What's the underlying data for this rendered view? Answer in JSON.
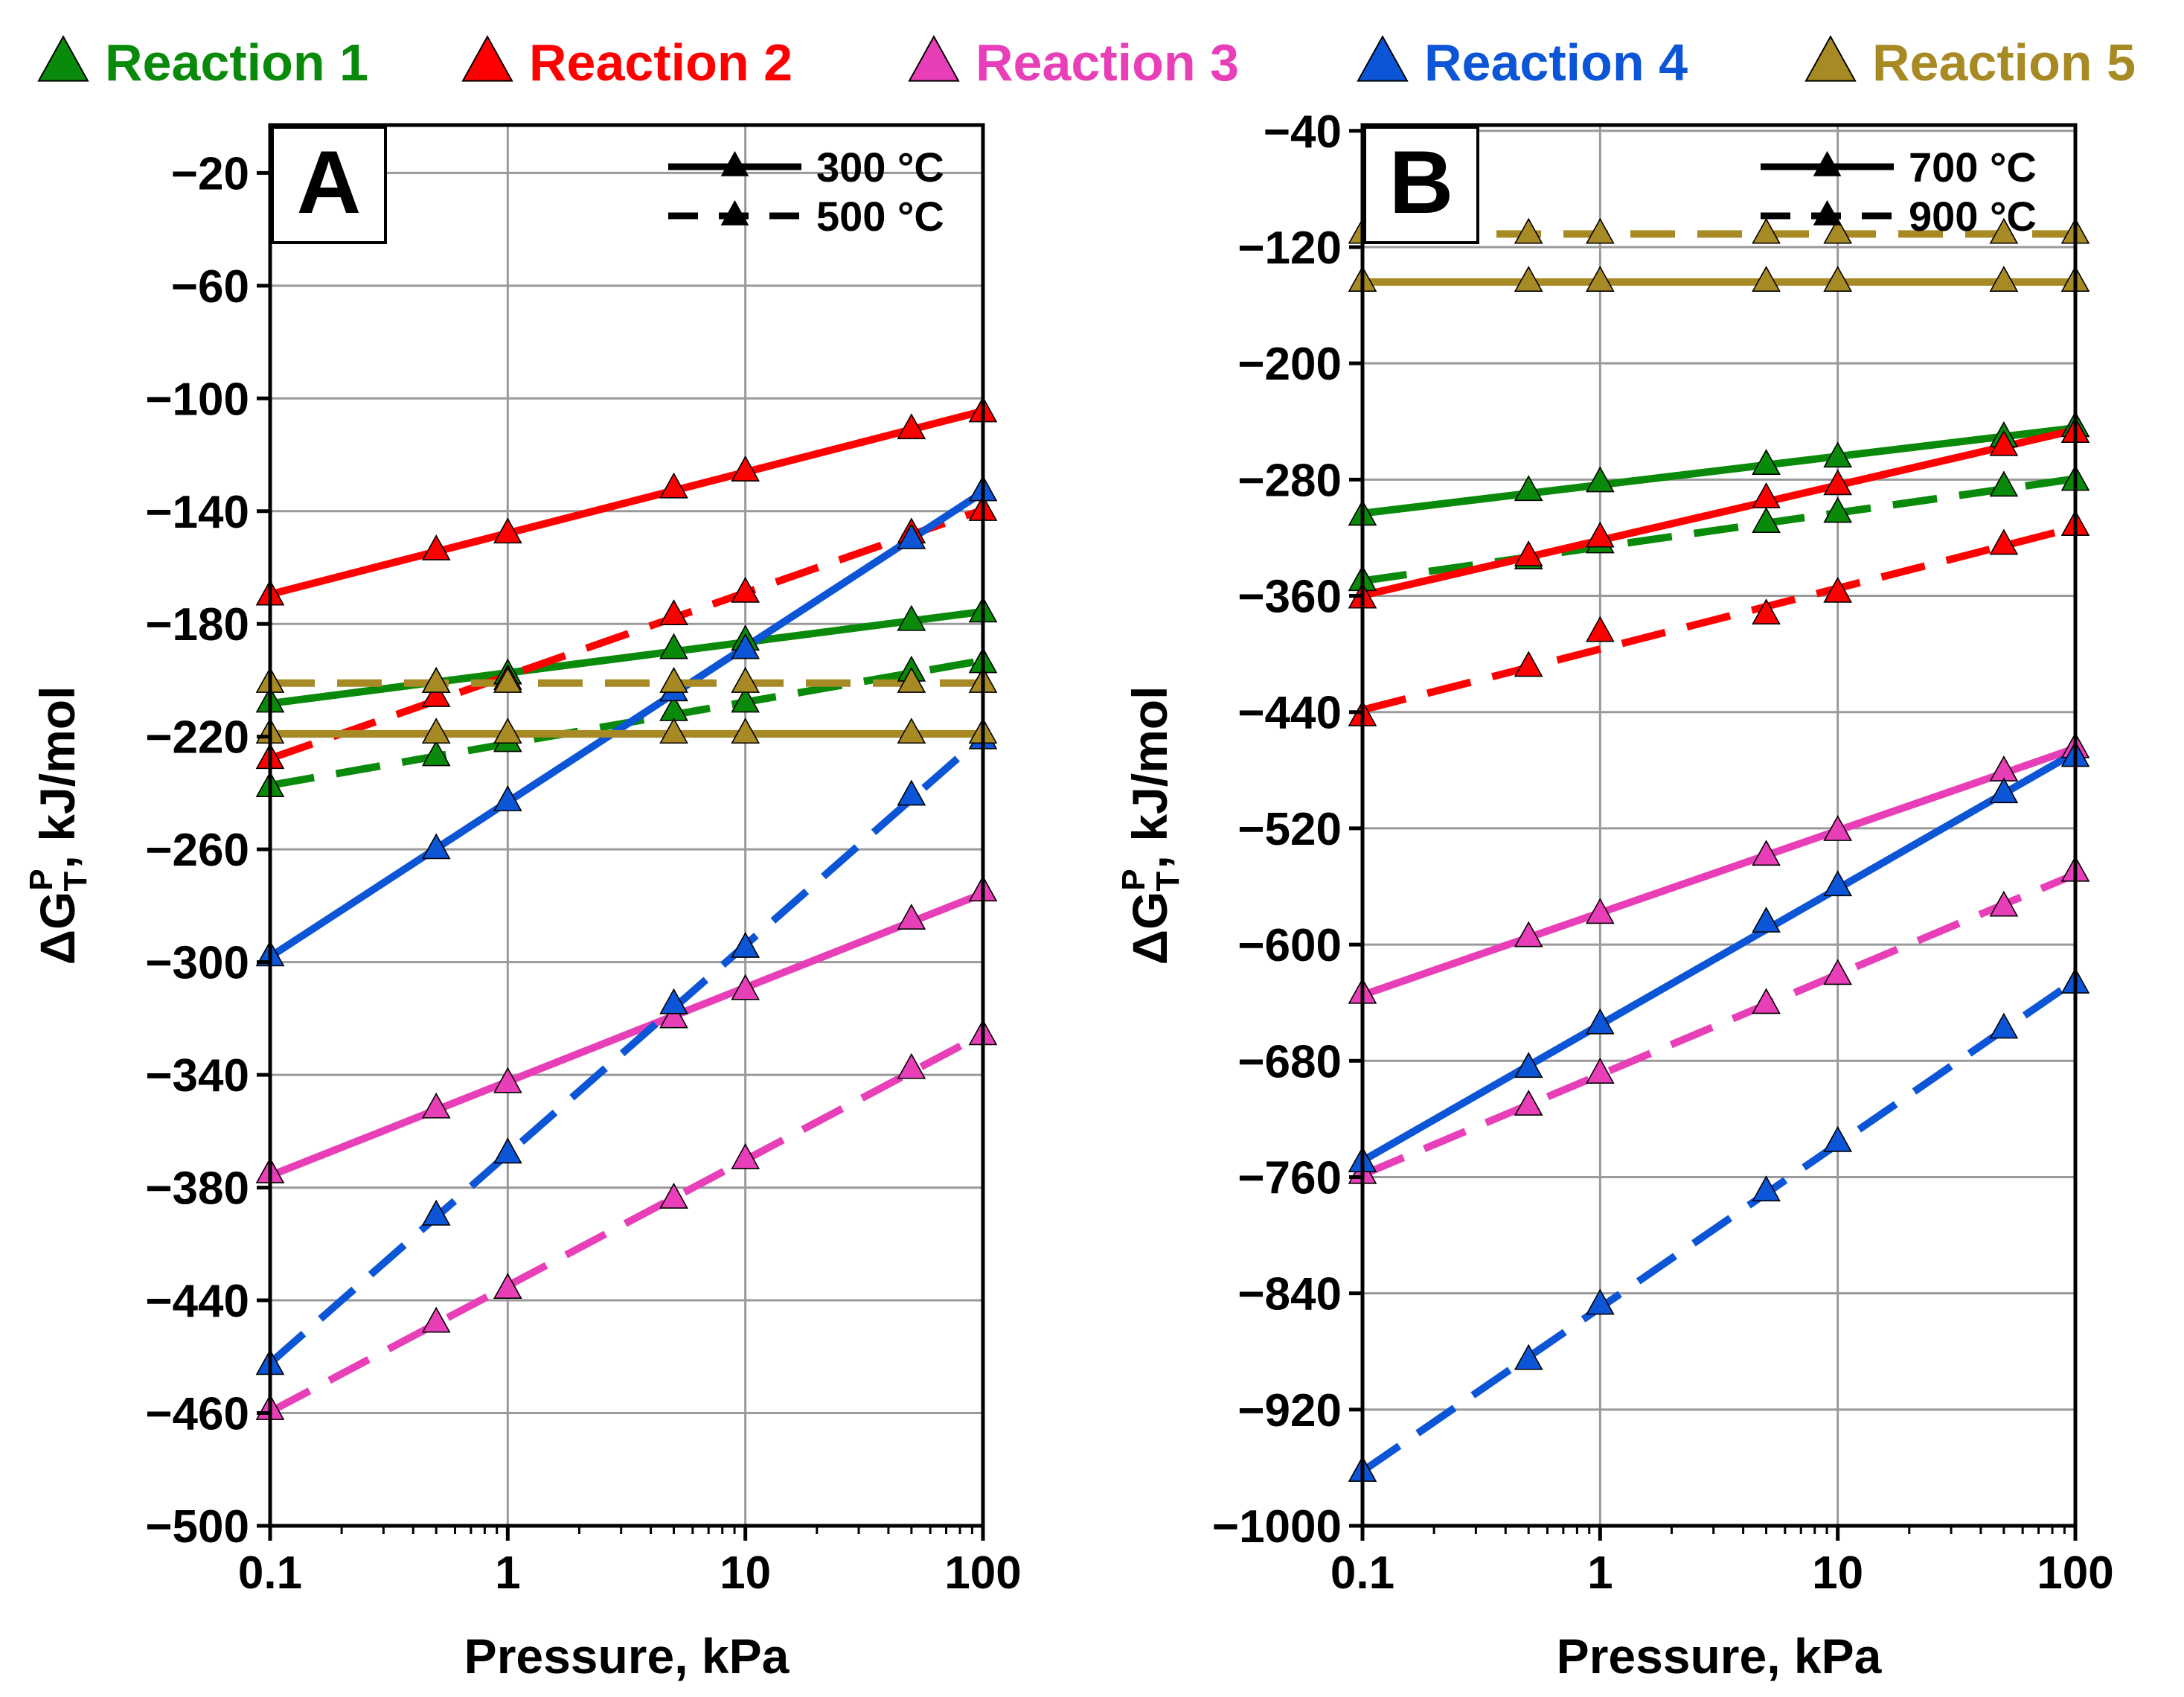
{
  "legend": [
    {
      "label": "Reaction 1",
      "color": "#0a8a0a"
    },
    {
      "label": "Reaction 2",
      "color": "#ff0000"
    },
    {
      "label": "Reaction 3",
      "color": "#e83fb8"
    },
    {
      "label": "Reaction 4",
      "color": "#0b55d6"
    },
    {
      "label": "Reaction 5",
      "color": "#a88a25"
    }
  ],
  "chart_data": [
    {
      "type": "line",
      "panel": "A",
      "xlabel": "Pressure, kPa",
      "ylabel": "ΔG_T^P, kJ/mol",
      "xscale": "log",
      "xlim": [
        0.1,
        100
      ],
      "ylim": [
        -500,
        -3
      ],
      "yticks": [
        -20,
        -60,
        -100,
        -140,
        -180,
        -220,
        -260,
        -300,
        -340,
        -380,
        -440,
        -460,
        -500
      ],
      "xticks": [
        "0.1",
        "1",
        "10",
        "100"
      ],
      "grid": true,
      "x": [
        0.1,
        0.5,
        1,
        5,
        10,
        50,
        100
      ],
      "temperature_legend": [
        {
          "label": "300 °C",
          "style": "solid"
        },
        {
          "label": "500 °C",
          "style": "dashed"
        }
      ],
      "series": [
        {
          "reaction": 1,
          "temperature": "300 °C",
          "style": "solid",
          "values": [
            -208,
            -201,
            -198,
            -189,
            -186,
            -179,
            -176
          ]
        },
        {
          "reaction": 1,
          "temperature": "500 °C",
          "style": "dashed",
          "values": [
            -238,
            -227,
            -222,
            -211,
            -208,
            -197,
            -194
          ]
        },
        {
          "reaction": 2,
          "temperature": "300 °C",
          "style": "solid",
          "values": [
            -170,
            -154,
            -148,
            -132,
            -126,
            -111,
            -105
          ]
        },
        {
          "reaction": 2,
          "temperature": "500 °C",
          "style": "dashed",
          "values": [
            -228,
            -206,
            -200,
            -177,
            -169,
            -148,
            -140
          ]
        },
        {
          "reaction": 3,
          "temperature": "300 °C",
          "style": "solid",
          "values": [
            -375,
            -352,
            -343,
            -320,
            -310,
            -285,
            -275
          ]
        },
        {
          "reaction": 3,
          "temperature": "500 °C",
          "style": "dashed",
          "values": [
            -459,
            -428,
            -416,
            -384,
            -370,
            -338,
            -326
          ]
        },
        {
          "reaction": 4,
          "temperature": "300 °C",
          "style": "solid",
          "values": [
            -298,
            -260,
            -243,
            -204,
            -189,
            -150,
            -133
          ]
        },
        {
          "reaction": 4,
          "temperature": "500 °C",
          "style": "dashed",
          "values": [
            -443,
            -390,
            -368,
            -315,
            -295,
            -241,
            -221
          ]
        },
        {
          "reaction": 5,
          "temperature": "300 °C",
          "style": "solid",
          "values": [
            -219,
            -219,
            -219,
            -219,
            -219,
            -219,
            -219
          ]
        },
        {
          "reaction": 5,
          "temperature": "500 °C",
          "style": "dashed",
          "values": [
            -201,
            -201,
            -201,
            -201,
            -201,
            -201,
            -201
          ]
        }
      ]
    },
    {
      "type": "line",
      "panel": "B",
      "xlabel": "Pressure, kPa",
      "ylabel": "ΔG_T^P, kJ/mol",
      "xscale": "log",
      "xlim": [
        0.1,
        100
      ],
      "ylim": [
        -1000,
        -36
      ],
      "yticks": [
        -40,
        -120,
        -200,
        -280,
        -360,
        -440,
        -520,
        -600,
        -680,
        -760,
        -840,
        -920,
        -1000
      ],
      "xticks": [
        "0.1",
        "1",
        "10",
        "100"
      ],
      "grid": true,
      "x": [
        0.1,
        0.5,
        1,
        5,
        10,
        50,
        100
      ],
      "temperature_legend": [
        {
          "label": "700 °C",
          "style": "solid"
        },
        {
          "label": "900 °C",
          "style": "dashed"
        }
      ],
      "series": [
        {
          "reaction": 1,
          "temperature": "700 °C",
          "style": "solid",
          "values": [
            -305,
            -288,
            -282,
            -270,
            -265,
            -251,
            -244
          ]
        },
        {
          "reaction": 1,
          "temperature": "900 °C",
          "style": "dashed",
          "values": [
            -350,
            -335,
            -324,
            -310,
            -303,
            -285,
            -281
          ]
        },
        {
          "reaction": 2,
          "temperature": "700 °C",
          "style": "solid",
          "values": [
            -362,
            -333,
            -320,
            -293,
            -284,
            -257,
            -248
          ]
        },
        {
          "reaction": 2,
          "temperature": "900 °C",
          "style": "dashed",
          "values": [
            -443,
            -409,
            -385,
            -373,
            -358,
            -325,
            -312
          ]
        },
        {
          "reaction": 3,
          "temperature": "700 °C",
          "style": "solid",
          "values": [
            -634,
            -595,
            -579,
            -539,
            -522,
            -481,
            -465
          ]
        },
        {
          "reaction": 3,
          "temperature": "900 °C",
          "style": "dashed",
          "values": [
            -758,
            -711,
            -689,
            -641,
            -621,
            -574,
            -550
          ]
        },
        {
          "reaction": 4,
          "temperature": "700 °C",
          "style": "solid",
          "values": [
            -750,
            -685,
            -655,
            -585,
            -560,
            -496,
            -471
          ]
        },
        {
          "reaction": 4,
          "temperature": "900 °C",
          "style": "dashed",
          "values": [
            -963,
            -886,
            -848,
            -770,
            -736,
            -658,
            -627
          ]
        },
        {
          "reaction": 5,
          "temperature": "700 °C",
          "style": "solid",
          "values": [
            -144,
            -144,
            -144,
            -144,
            -144,
            -144,
            -144
          ]
        },
        {
          "reaction": 5,
          "temperature": "900 °C",
          "style": "dashed",
          "values": [
            -111,
            -111,
            -111,
            -111,
            -111,
            -111,
            -111
          ]
        }
      ]
    }
  ]
}
